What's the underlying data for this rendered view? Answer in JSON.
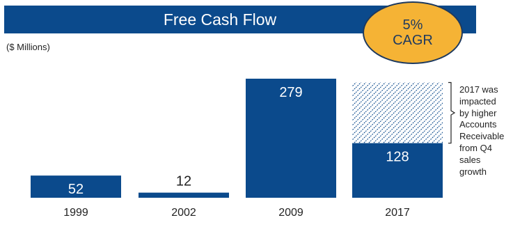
{
  "header": {
    "title": "Free Cash Flow",
    "badge": "5%\nCAGR",
    "units": "($ Millions)"
  },
  "chart_data": {
    "type": "bar",
    "title": "Free Cash Flow",
    "ylabel": "($ Millions)",
    "categories": [
      "1999",
      "2002",
      "2009",
      "2017"
    ],
    "values": [
      52,
      12,
      279,
      128
    ],
    "labels": [
      "52",
      "12",
      "279",
      "128"
    ],
    "ylim": [
      0,
      290
    ],
    "grid": false,
    "legend": "none",
    "annotation": {
      "category": "2017",
      "text": "2017 was\nimpacted\nby higher\nAccounts\nReceivable\nfrom Q4\nsales\ngrowth",
      "hatched_extension_top": 270
    }
  },
  "colors": {
    "bar": "#0b4a8c",
    "badge": "#f5b335",
    "badge_border": "#1e3a5f",
    "hatch": "#0b4a8c",
    "text": "#222222"
  }
}
